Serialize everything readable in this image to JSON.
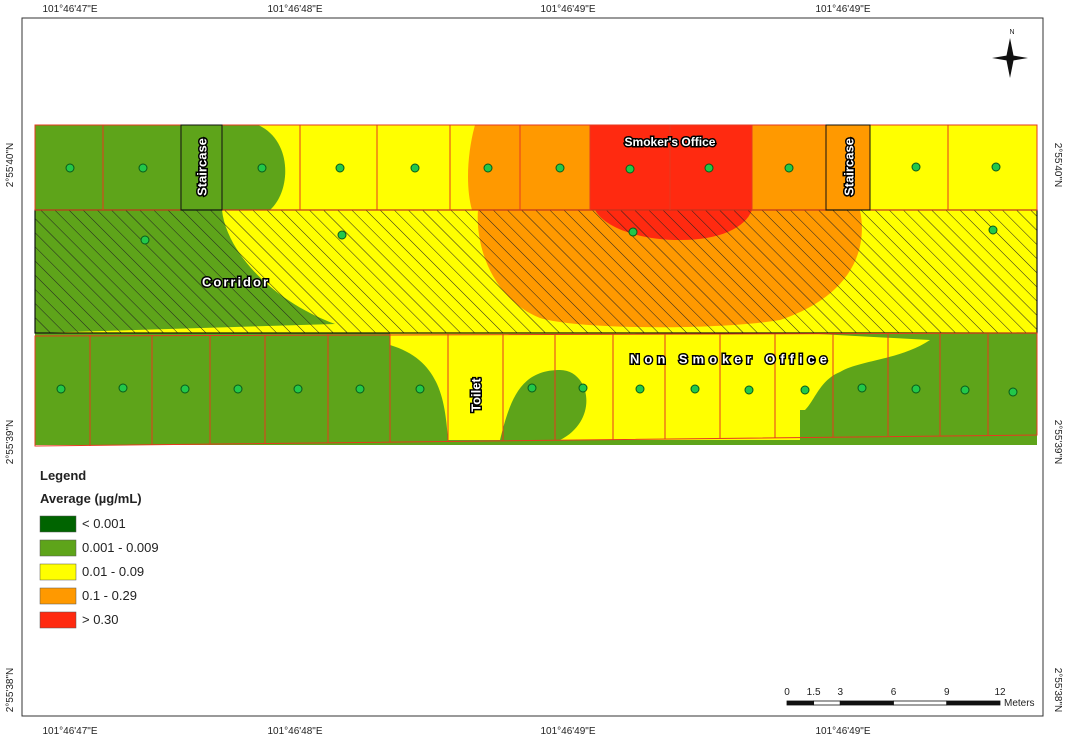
{
  "map": {
    "coords_top": [
      "101°46'47\"E",
      "101°46'48\"E",
      "101°46'49\"E",
      "101°46'49\"E"
    ],
    "coords_bottom": [
      "101°46'47\"E",
      "101°46'48\"E",
      "101°46'49\"E",
      "101°46'49\"E"
    ],
    "coords_left": [
      "2°55'40\"N",
      "2°55'39\"N",
      "2°55'38\"N"
    ],
    "coords_right": [
      "2°55'40\"N",
      "2°55'39\"N",
      "2°55'38\"N"
    ],
    "north": "N",
    "rooms": {
      "staircase_left": "Staircase",
      "smoker_office": "Smoker's Office",
      "staircase_right": "Staircase",
      "corridor": "Corridor",
      "non_smoker_office": "Non Smoker Office",
      "toilet": "Toilet"
    },
    "legend": {
      "title": "Legend",
      "subtitle": "Average (µg/mL)",
      "items": [
        {
          "label": "< 0.001",
          "color": "#006400"
        },
        {
          "label": "0.001 - 0.009",
          "color": "#5ea41a"
        },
        {
          "label": "0.01 - 0.09",
          "color": "#ffff00"
        },
        {
          "label": "0.1 - 0.29",
          "color": "#ff9900"
        },
        {
          "label": "> 0.30",
          "color": "#ff2a10"
        }
      ]
    },
    "scale": {
      "ticks": [
        0,
        1.5,
        3,
        6,
        9,
        12
      ],
      "unit": "Meters"
    }
  }
}
